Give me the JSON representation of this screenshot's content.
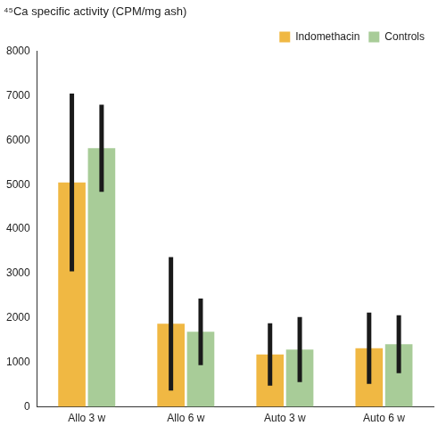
{
  "chart_data": {
    "type": "bar",
    "title": "⁴⁵Ca specific activity (CPM/mg ash)",
    "categories": [
      "Allo 3 w",
      "Allo 6 w",
      "Auto 3 w",
      "Auto 6 w"
    ],
    "series": [
      {
        "name": "Indomethacin",
        "color": "#f0b843",
        "values": [
          5050,
          1870,
          1180,
          1320
        ],
        "errors": [
          2000,
          1500,
          700,
          800
        ]
      },
      {
        "name": "Controls",
        "color": "#a8cc98",
        "values": [
          5820,
          1690,
          1290,
          1410
        ],
        "errors": [
          980,
          750,
          730,
          650
        ]
      }
    ],
    "ylim": [
      0,
      8000
    ],
    "yticks": [
      0,
      1000,
      2000,
      3000,
      4000,
      5000,
      6000,
      7000,
      8000
    ],
    "grid": false,
    "legend": "top-right"
  }
}
